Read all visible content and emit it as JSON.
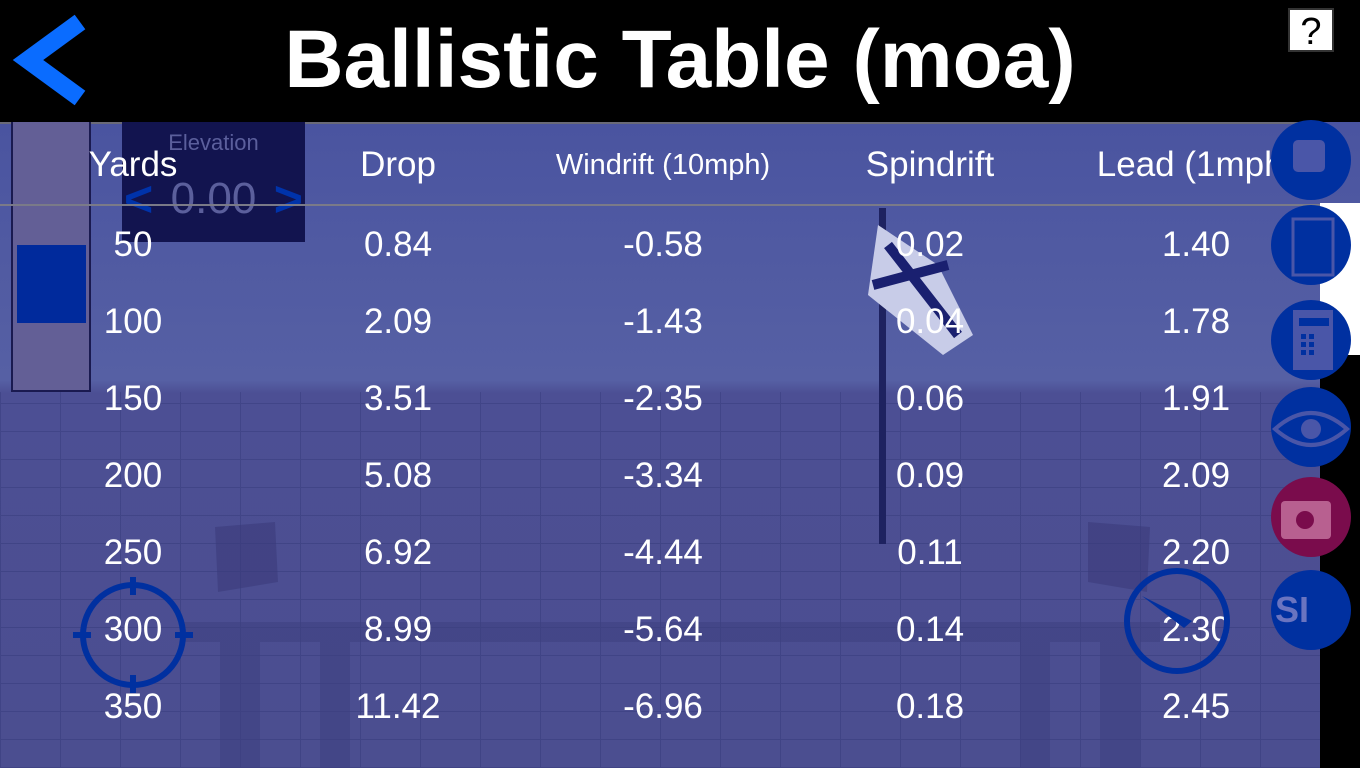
{
  "header": {
    "title": "Ballistic Table (moa)",
    "help_label": "?"
  },
  "elevation": {
    "label": "Elevation",
    "value": "0.00",
    "dec_label": "<",
    "inc_label": ">"
  },
  "table": {
    "columns": [
      "Yards",
      "Drop",
      "Windrift (10mph)",
      "Spindrift",
      "Lead (1mph)"
    ],
    "rows": [
      [
        "50",
        "0.84",
        "-0.58",
        "0.02",
        "1.40"
      ],
      [
        "100",
        "2.09",
        "-1.43",
        "0.04",
        "1.78"
      ],
      [
        "150",
        "3.51",
        "-2.35",
        "0.06",
        "1.91"
      ],
      [
        "200",
        "5.08",
        "-3.34",
        "0.09",
        "2.09"
      ],
      [
        "250",
        "6.92",
        "-4.44",
        "0.11",
        "2.20"
      ],
      [
        "300",
        "8.99",
        "-5.64",
        "0.14",
        "2.30"
      ],
      [
        "350",
        "11.42",
        "-6.96",
        "0.18",
        "2.45"
      ]
    ]
  },
  "side_buttons": {
    "si_label": "SI"
  },
  "icons": [
    "back-chevron-icon",
    "stop-icon",
    "square-icon",
    "calculator-icon",
    "eye-icon",
    "camera-icon",
    "crosshair-icon",
    "compass-icon"
  ],
  "colors": {
    "accent": "#0033aa",
    "camera": "#7a0c4c",
    "background": "#5058a0"
  }
}
